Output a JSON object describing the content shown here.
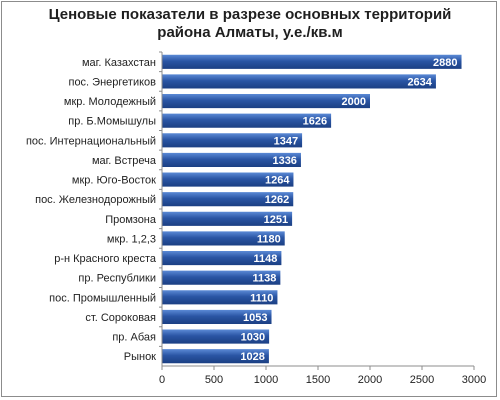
{
  "chart_data": {
    "type": "bar",
    "orientation": "horizontal",
    "title_lines": [
      "Ценовые показатели в разрезе основных территорий",
      "района Алматы, у.е./кв.м"
    ],
    "categories": [
      "маг. Казахстан",
      "пос. Энергетиков",
      "мкр. Молодежный",
      "пр. Б.Момышулы",
      "пос. Интернациональный",
      "маг. Встреча",
      "мкр. Юго-Восток",
      "пос. Железнодорожный",
      "Промзона",
      "мкр. 1,2,3",
      "р-н Красного креста",
      "пр. Республики",
      "пос. Промышленный",
      "ст. Сороковая",
      "пр. Абая",
      "Рынок"
    ],
    "values": [
      2880,
      2634,
      2000,
      1626,
      1347,
      1336,
      1264,
      1262,
      1251,
      1180,
      1148,
      1138,
      1110,
      1053,
      1030,
      1028
    ],
    "x_ticks": [
      0,
      500,
      1000,
      1500,
      2000,
      2500,
      3000
    ],
    "xlim": [
      0,
      3000
    ],
    "grid": false,
    "legend": "none",
    "colors": {
      "bar": "#2a55a4",
      "bar_light": "#5b8ad6",
      "bar_dark": "#1b3f83",
      "axis": "#8c8c8c"
    }
  }
}
